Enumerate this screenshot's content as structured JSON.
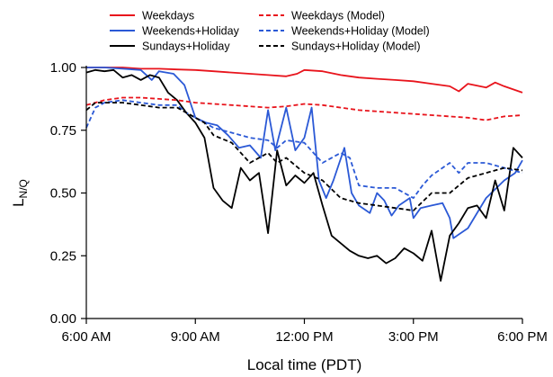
{
  "chart_data": {
    "type": "line",
    "title": "",
    "xlabel": "Local time (PDT)",
    "ylabel_main": "L",
    "ylabel_sub": "N/Q",
    "xlim": [
      6,
      18
    ],
    "ylim": [
      0,
      1
    ],
    "xticks": [
      {
        "value": 6,
        "label": "6:00 AM"
      },
      {
        "value": 9,
        "label": "9:00 AM"
      },
      {
        "value": 12,
        "label": "12:00 PM"
      },
      {
        "value": 15,
        "label": "3:00 PM"
      },
      {
        "value": 18,
        "label": "6:00 PM"
      }
    ],
    "yticks": [
      {
        "value": 0,
        "label": "0.00"
      },
      {
        "value": 0.25,
        "label": "0.25"
      },
      {
        "value": 0.5,
        "label": "0.50"
      },
      {
        "value": 0.75,
        "label": "0.75"
      },
      {
        "value": 1,
        "label": "1.00"
      }
    ],
    "grid": false,
    "legend_position": "top",
    "series": [
      {
        "name": "Weekdays",
        "color": "#e8141c",
        "dash": "solid",
        "points": [
          [
            6.0,
            1.0
          ],
          [
            6.5,
            1.0
          ],
          [
            7.0,
            1.0
          ],
          [
            7.5,
            0.995
          ],
          [
            8.0,
            0.995
          ],
          [
            8.5,
            0.992
          ],
          [
            9.0,
            0.99
          ],
          [
            9.5,
            0.985
          ],
          [
            10.0,
            0.98
          ],
          [
            10.5,
            0.975
          ],
          [
            11.0,
            0.97
          ],
          [
            11.5,
            0.965
          ],
          [
            11.8,
            0.975
          ],
          [
            12.0,
            0.99
          ],
          [
            12.5,
            0.985
          ],
          [
            13.0,
            0.97
          ],
          [
            13.5,
            0.96
          ],
          [
            14.0,
            0.955
          ],
          [
            14.5,
            0.95
          ],
          [
            15.0,
            0.945
          ],
          [
            15.5,
            0.935
          ],
          [
            16.0,
            0.925
          ],
          [
            16.25,
            0.905
          ],
          [
            16.5,
            0.935
          ],
          [
            17.0,
            0.92
          ],
          [
            17.25,
            0.94
          ],
          [
            17.5,
            0.925
          ],
          [
            18.0,
            0.9
          ]
        ]
      },
      {
        "name": "Weekends+Holiday",
        "color": "#2b59d6",
        "dash": "solid",
        "points": [
          [
            6.0,
            1.0
          ],
          [
            6.5,
            1.0
          ],
          [
            7.0,
            0.995
          ],
          [
            7.5,
            0.99
          ],
          [
            7.8,
            0.95
          ],
          [
            8.0,
            0.985
          ],
          [
            8.4,
            0.975
          ],
          [
            8.7,
            0.93
          ],
          [
            9.0,
            0.8
          ],
          [
            9.3,
            0.78
          ],
          [
            9.6,
            0.77
          ],
          [
            9.9,
            0.73
          ],
          [
            10.2,
            0.68
          ],
          [
            10.5,
            0.69
          ],
          [
            10.8,
            0.64
          ],
          [
            11.0,
            0.83
          ],
          [
            11.2,
            0.67
          ],
          [
            11.5,
            0.84
          ],
          [
            11.75,
            0.67
          ],
          [
            12.0,
            0.72
          ],
          [
            12.2,
            0.84
          ],
          [
            12.4,
            0.55
          ],
          [
            12.6,
            0.48
          ],
          [
            12.8,
            0.55
          ],
          [
            13.1,
            0.68
          ],
          [
            13.3,
            0.5
          ],
          [
            13.5,
            0.45
          ],
          [
            13.8,
            0.42
          ],
          [
            14.0,
            0.5
          ],
          [
            14.2,
            0.47
          ],
          [
            14.4,
            0.41
          ],
          [
            14.6,
            0.45
          ],
          [
            14.9,
            0.48
          ],
          [
            15.0,
            0.4
          ],
          [
            15.2,
            0.44
          ],
          [
            15.5,
            0.45
          ],
          [
            15.8,
            0.46
          ],
          [
            16.0,
            0.4
          ],
          [
            16.1,
            0.32
          ],
          [
            16.5,
            0.36
          ],
          [
            17.0,
            0.48
          ],
          [
            17.5,
            0.55
          ],
          [
            17.8,
            0.58
          ],
          [
            18.0,
            0.63
          ]
        ]
      },
      {
        "name": "Sundays+Holiday",
        "color": "#000000",
        "dash": "solid",
        "points": [
          [
            6.0,
            0.98
          ],
          [
            6.25,
            0.99
          ],
          [
            6.5,
            0.985
          ],
          [
            6.75,
            0.99
          ],
          [
            7.0,
            0.96
          ],
          [
            7.25,
            0.97
          ],
          [
            7.5,
            0.95
          ],
          [
            7.75,
            0.97
          ],
          [
            8.0,
            0.96
          ],
          [
            8.25,
            0.9
          ],
          [
            8.5,
            0.87
          ],
          [
            8.75,
            0.82
          ],
          [
            9.0,
            0.78
          ],
          [
            9.25,
            0.72
          ],
          [
            9.5,
            0.52
          ],
          [
            9.75,
            0.47
          ],
          [
            10.0,
            0.44
          ],
          [
            10.25,
            0.6
          ],
          [
            10.5,
            0.55
          ],
          [
            10.75,
            0.58
          ],
          [
            11.0,
            0.34
          ],
          [
            11.25,
            0.67
          ],
          [
            11.5,
            0.53
          ],
          [
            11.75,
            0.57
          ],
          [
            12.0,
            0.54
          ],
          [
            12.25,
            0.58
          ],
          [
            12.5,
            0.45
          ],
          [
            12.75,
            0.33
          ],
          [
            13.0,
            0.3
          ],
          [
            13.25,
            0.27
          ],
          [
            13.5,
            0.25
          ],
          [
            13.75,
            0.24
          ],
          [
            14.0,
            0.25
          ],
          [
            14.25,
            0.22
          ],
          [
            14.5,
            0.24
          ],
          [
            14.75,
            0.28
          ],
          [
            15.0,
            0.26
          ],
          [
            15.25,
            0.23
          ],
          [
            15.5,
            0.35
          ],
          [
            15.75,
            0.15
          ],
          [
            16.0,
            0.33
          ],
          [
            16.25,
            0.38
          ],
          [
            16.5,
            0.44
          ],
          [
            16.75,
            0.45
          ],
          [
            17.0,
            0.4
          ],
          [
            17.25,
            0.55
          ],
          [
            17.5,
            0.43
          ],
          [
            17.75,
            0.68
          ],
          [
            18.0,
            0.64
          ]
        ]
      },
      {
        "name": "Weekdays (Model)",
        "color": "#e8141c",
        "dash": "dashed",
        "points": [
          [
            6.0,
            0.85
          ],
          [
            6.5,
            0.87
          ],
          [
            7.0,
            0.88
          ],
          [
            7.5,
            0.88
          ],
          [
            8.0,
            0.875
          ],
          [
            8.5,
            0.87
          ],
          [
            9.0,
            0.86
          ],
          [
            9.5,
            0.855
          ],
          [
            10.0,
            0.85
          ],
          [
            10.5,
            0.845
          ],
          [
            11.0,
            0.84
          ],
          [
            11.5,
            0.845
          ],
          [
            12.0,
            0.855
          ],
          [
            12.5,
            0.85
          ],
          [
            13.0,
            0.84
          ],
          [
            13.5,
            0.83
          ],
          [
            14.0,
            0.825
          ],
          [
            14.5,
            0.82
          ],
          [
            15.0,
            0.815
          ],
          [
            15.5,
            0.81
          ],
          [
            16.0,
            0.805
          ],
          [
            16.5,
            0.8
          ],
          [
            17.0,
            0.79
          ],
          [
            17.5,
            0.805
          ],
          [
            18.0,
            0.81
          ]
        ]
      },
      {
        "name": "Weekends+Holiday (Model)",
        "color": "#2b59d6",
        "dash": "dashed",
        "points": [
          [
            6.0,
            0.76
          ],
          [
            6.25,
            0.84
          ],
          [
            6.5,
            0.86
          ],
          [
            7.0,
            0.87
          ],
          [
            7.5,
            0.86
          ],
          [
            8.0,
            0.85
          ],
          [
            8.5,
            0.85
          ],
          [
            8.75,
            0.82
          ],
          [
            9.0,
            0.8
          ],
          [
            9.5,
            0.76
          ],
          [
            10.0,
            0.74
          ],
          [
            10.5,
            0.72
          ],
          [
            11.0,
            0.71
          ],
          [
            11.25,
            0.68
          ],
          [
            11.5,
            0.71
          ],
          [
            12.0,
            0.7
          ],
          [
            12.5,
            0.62
          ],
          [
            13.0,
            0.66
          ],
          [
            13.25,
            0.64
          ],
          [
            13.5,
            0.53
          ],
          [
            14.0,
            0.52
          ],
          [
            14.5,
            0.52
          ],
          [
            15.0,
            0.48
          ],
          [
            15.25,
            0.53
          ],
          [
            15.5,
            0.57
          ],
          [
            16.0,
            0.62
          ],
          [
            16.25,
            0.58
          ],
          [
            16.5,
            0.62
          ],
          [
            17.0,
            0.62
          ],
          [
            17.5,
            0.6
          ],
          [
            18.0,
            0.58
          ]
        ]
      },
      {
        "name": "Sundays+Holiday (Model)",
        "color": "#000000",
        "dash": "dashed",
        "points": [
          [
            6.0,
            0.83
          ],
          [
            6.25,
            0.86
          ],
          [
            6.5,
            0.86
          ],
          [
            7.0,
            0.86
          ],
          [
            7.5,
            0.85
          ],
          [
            8.0,
            0.84
          ],
          [
            8.5,
            0.84
          ],
          [
            9.0,
            0.8
          ],
          [
            9.25,
            0.78
          ],
          [
            9.5,
            0.73
          ],
          [
            10.0,
            0.7
          ],
          [
            10.5,
            0.62
          ],
          [
            11.0,
            0.66
          ],
          [
            11.25,
            0.62
          ],
          [
            11.5,
            0.64
          ],
          [
            12.0,
            0.58
          ],
          [
            12.5,
            0.55
          ],
          [
            13.0,
            0.48
          ],
          [
            13.5,
            0.46
          ],
          [
            14.0,
            0.45
          ],
          [
            14.5,
            0.44
          ],
          [
            15.0,
            0.43
          ],
          [
            15.5,
            0.5
          ],
          [
            16.0,
            0.5
          ],
          [
            16.5,
            0.56
          ],
          [
            17.0,
            0.58
          ],
          [
            17.5,
            0.6
          ],
          [
            18.0,
            0.59
          ]
        ]
      }
    ]
  }
}
